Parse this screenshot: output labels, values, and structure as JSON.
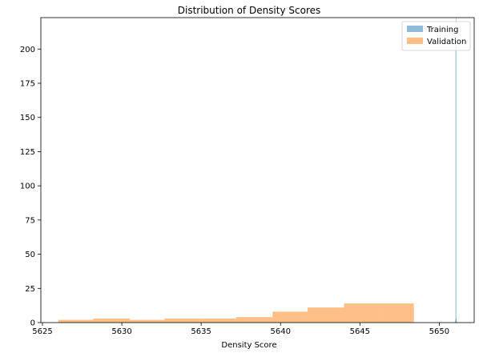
{
  "chart_data": {
    "type": "histogram",
    "title": "Distribution of Density Scores",
    "xlabel": "Density Score",
    "ylabel": "",
    "xlim": [
      5624.9,
      5652.2
    ],
    "ylim": [
      0,
      223
    ],
    "xticks": [
      5625,
      5630,
      5635,
      5640,
      5645,
      5650
    ],
    "yticks": [
      0,
      25,
      50,
      75,
      100,
      125,
      150,
      175,
      200
    ],
    "grid": false,
    "legend_position": "top-right",
    "series": [
      {
        "name": "Training",
        "color": "#1f77b4",
        "opacity": 0.5,
        "bins": [
          {
            "x0": 5651.0,
            "x1": 5651.02,
            "count": 2
          },
          {
            "x0": 5651.02,
            "x1": 5651.04,
            "count": 210
          },
          {
            "x0": 5651.04,
            "x1": 5651.06,
            "count": 223
          },
          {
            "x0": 5651.06,
            "x1": 5651.08,
            "count": 3
          },
          {
            "x0": 5651.08,
            "x1": 5651.1,
            "count": 1
          }
        ]
      },
      {
        "name": "Validation",
        "color": "#ff7f0e",
        "opacity": 0.5,
        "bins": [
          {
            "x0": 5626.0,
            "x1": 5628.2,
            "count": 2
          },
          {
            "x0": 5628.2,
            "x1": 5630.5,
            "count": 3
          },
          {
            "x0": 5630.5,
            "x1": 5632.7,
            "count": 2
          },
          {
            "x0": 5632.7,
            "x1": 5635.0,
            "count": 3
          },
          {
            "x0": 5635.0,
            "x1": 5637.2,
            "count": 3
          },
          {
            "x0": 5637.2,
            "x1": 5639.5,
            "count": 4
          },
          {
            "x0": 5639.5,
            "x1": 5641.7,
            "count": 8
          },
          {
            "x0": 5641.7,
            "x1": 5644.0,
            "count": 11
          },
          {
            "x0": 5644.0,
            "x1": 5646.2,
            "count": 14
          },
          {
            "x0": 5646.2,
            "x1": 5648.4,
            "count": 14
          }
        ]
      }
    ]
  }
}
